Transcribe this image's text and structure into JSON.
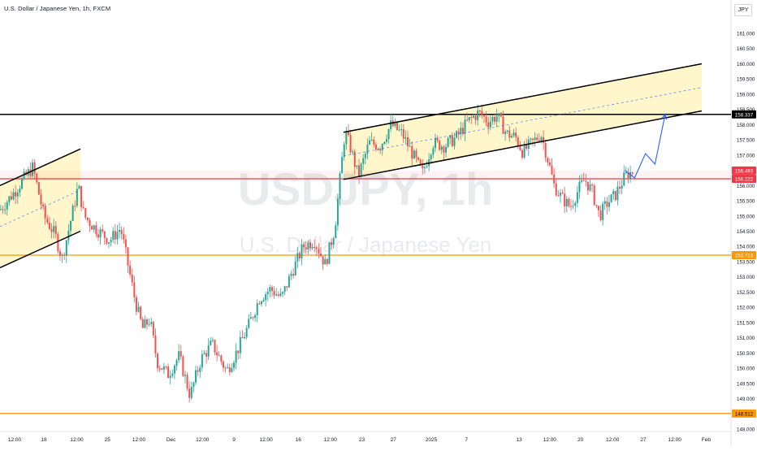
{
  "header": {
    "symbol_title": "U.S. Dollar / Japanese Yen, 1h, FXCM",
    "currency": "JPY"
  },
  "watermark": {
    "symbol": "USDJPY, 1h",
    "name": "U.S. Dollar / Japanese Yen"
  },
  "colors": {
    "up_candle": "#26a69a",
    "down_candle": "#ef5350",
    "resistance_line": "#000000",
    "red_level": "#f23645",
    "orange_level": "#ff9800",
    "channel_fill": "#fff4c2",
    "projection": "#2962ff"
  },
  "chart_data": {
    "type": "candlestick",
    "title": "U.S. Dollar / Japanese Yen, 1h, FXCM",
    "ylim": [
      148.0,
      161.0
    ],
    "y_ticks": [
      "161.000",
      "160.500",
      "160.000",
      "159.500",
      "159.000",
      "158.500",
      "158.000",
      "157.500",
      "157.000",
      "156.500",
      "156.000",
      "155.500",
      "155.000",
      "154.500",
      "154.000",
      "153.500",
      "153.000",
      "152.500",
      "152.000",
      "151.500",
      "151.000",
      "150.500",
      "150.000",
      "149.500",
      "149.000",
      "148.500",
      "148.000"
    ],
    "x_ticks": [
      "12:00",
      "18",
      "12:00",
      "25",
      "12:00",
      "Dec",
      "12:00",
      "9",
      "12:00",
      "16",
      "12:00",
      "23",
      "27",
      "2025",
      "7",
      "13",
      "12:00",
      "20",
      "12:00",
      "27",
      "12:00",
      "Feb"
    ],
    "x_tick_pos": [
      0.02,
      0.06,
      0.105,
      0.147,
      0.19,
      0.234,
      0.277,
      0.32,
      0.364,
      0.408,
      0.452,
      0.495,
      0.538,
      0.59,
      0.638,
      0.71,
      0.752,
      0.794,
      0.838,
      0.88,
      0.923,
      0.966
    ],
    "price_labels": [
      {
        "label": "158.337",
        "value": 158.337,
        "style": "black"
      },
      {
        "label": "156.493",
        "value": 156.493,
        "style": "red"
      },
      {
        "label": "156.222",
        "value": 156.222,
        "style": "red"
      },
      {
        "label": "153.713",
        "value": 153.713,
        "style": "orange"
      },
      {
        "label": "148.512",
        "value": 148.512,
        "style": "orange"
      }
    ],
    "horizontal_levels": [
      {
        "value": 158.337,
        "style": "black"
      },
      {
        "value": 156.222,
        "style": "red"
      },
      {
        "value": 153.713,
        "style": "orange"
      },
      {
        "value": 148.512,
        "style": "orange"
      }
    ],
    "price_path": [
      {
        "x": 0.0,
        "y": 155.2
      },
      {
        "x": 0.02,
        "y": 155.8
      },
      {
        "x": 0.035,
        "y": 156.3
      },
      {
        "x": 0.045,
        "y": 156.6
      },
      {
        "x": 0.06,
        "y": 155.0
      },
      {
        "x": 0.075,
        "y": 154.4
      },
      {
        "x": 0.085,
        "y": 153.6
      },
      {
        "x": 0.1,
        "y": 155.2
      },
      {
        "x": 0.107,
        "y": 156.0
      },
      {
        "x": 0.115,
        "y": 155.0
      },
      {
        "x": 0.13,
        "y": 154.6
      },
      {
        "x": 0.15,
        "y": 154.2
      },
      {
        "x": 0.165,
        "y": 154.6
      },
      {
        "x": 0.175,
        "y": 153.4
      },
      {
        "x": 0.185,
        "y": 152.2
      },
      {
        "x": 0.195,
        "y": 151.3
      },
      {
        "x": 0.205,
        "y": 151.6
      },
      {
        "x": 0.215,
        "y": 150.2
      },
      {
        "x": 0.23,
        "y": 149.8
      },
      {
        "x": 0.245,
        "y": 150.4
      },
      {
        "x": 0.26,
        "y": 149.1
      },
      {
        "x": 0.275,
        "y": 150.3
      },
      {
        "x": 0.29,
        "y": 150.8
      },
      {
        "x": 0.31,
        "y": 149.9
      },
      {
        "x": 0.325,
        "y": 150.6
      },
      {
        "x": 0.34,
        "y": 151.4
      },
      {
        "x": 0.355,
        "y": 152.3
      },
      {
        "x": 0.37,
        "y": 152.6
      },
      {
        "x": 0.385,
        "y": 152.3
      },
      {
        "x": 0.4,
        "y": 153.2
      },
      {
        "x": 0.415,
        "y": 154.0
      },
      {
        "x": 0.43,
        "y": 154.2
      },
      {
        "x": 0.445,
        "y": 153.4
      },
      {
        "x": 0.458,
        "y": 154.6
      },
      {
        "x": 0.465,
        "y": 156.2
      },
      {
        "x": 0.472,
        "y": 157.8
      },
      {
        "x": 0.48,
        "y": 157.2
      },
      {
        "x": 0.49,
        "y": 156.3
      },
      {
        "x": 0.505,
        "y": 157.4
      },
      {
        "x": 0.52,
        "y": 157.3
      },
      {
        "x": 0.535,
        "y": 158.0
      },
      {
        "x": 0.55,
        "y": 157.7
      },
      {
        "x": 0.565,
        "y": 157.0
      },
      {
        "x": 0.578,
        "y": 156.4
      },
      {
        "x": 0.592,
        "y": 157.4
      },
      {
        "x": 0.608,
        "y": 157.3
      },
      {
        "x": 0.625,
        "y": 157.6
      },
      {
        "x": 0.64,
        "y": 158.1
      },
      {
        "x": 0.655,
        "y": 158.4
      },
      {
        "x": 0.668,
        "y": 158.1
      },
      {
        "x": 0.68,
        "y": 158.3
      },
      {
        "x": 0.693,
        "y": 157.7
      },
      {
        "x": 0.705,
        "y": 157.6
      },
      {
        "x": 0.715,
        "y": 157.1
      },
      {
        "x": 0.728,
        "y": 157.4
      },
      {
        "x": 0.74,
        "y": 157.7
      },
      {
        "x": 0.75,
        "y": 156.8
      },
      {
        "x": 0.758,
        "y": 156.0
      },
      {
        "x": 0.768,
        "y": 155.6
      },
      {
        "x": 0.78,
        "y": 155.3
      },
      {
        "x": 0.792,
        "y": 155.9
      },
      {
        "x": 0.8,
        "y": 156.2
      },
      {
        "x": 0.81,
        "y": 155.8
      },
      {
        "x": 0.82,
        "y": 155.0
      },
      {
        "x": 0.83,
        "y": 155.4
      },
      {
        "x": 0.842,
        "y": 155.7
      },
      {
        "x": 0.855,
        "y": 156.3
      },
      {
        "x": 0.868,
        "y": 156.5
      }
    ],
    "channels": [
      {
        "upper": [
          [
            0.0,
            156.0
          ],
          [
            0.11,
            157.2
          ]
        ],
        "lower": [
          [
            0.0,
            153.3
          ],
          [
            0.11,
            154.5
          ]
        ],
        "mid": [
          [
            0.0,
            154.65
          ],
          [
            0.11,
            155.85
          ]
        ]
      },
      {
        "upper": [
          [
            0.47,
            157.75
          ],
          [
            0.96,
            160.0
          ]
        ],
        "lower": [
          [
            0.47,
            156.2
          ],
          [
            0.96,
            158.45
          ]
        ],
        "mid": [
          [
            0.47,
            156.97
          ],
          [
            0.96,
            159.22
          ]
        ]
      }
    ],
    "projection": [
      [
        0.855,
        156.5
      ],
      [
        0.868,
        156.25
      ],
      [
        0.883,
        157.05
      ],
      [
        0.896,
        156.7
      ],
      [
        0.91,
        158.35
      ]
    ]
  }
}
